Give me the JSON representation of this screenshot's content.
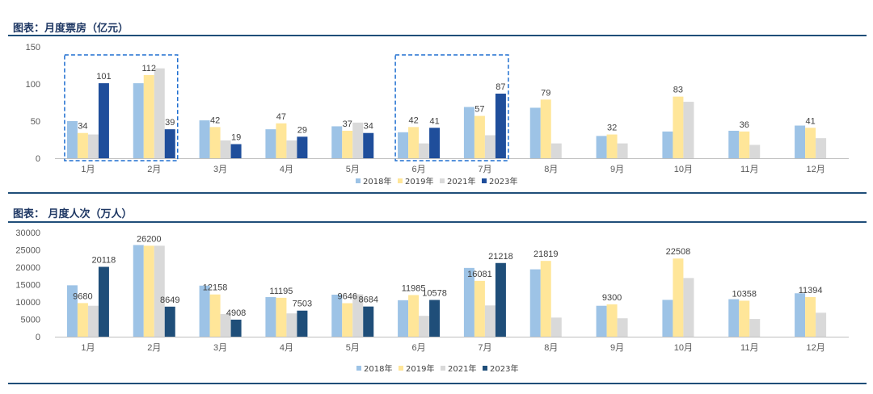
{
  "chart_data": [
    {
      "type": "bar",
      "title": "图表：月度票房（亿元）",
      "categories": [
        "1月",
        "2月",
        "3月",
        "4月",
        "5月",
        "6月",
        "7月",
        "8月",
        "9月",
        "10月",
        "11月",
        "12月"
      ],
      "series": [
        {
          "name": "2018年",
          "color": "#9dc3e6",
          "values": [
            50,
            101,
            51,
            39,
            43,
            35,
            69,
            68,
            30,
            36,
            37,
            44
          ]
        },
        {
          "name": "2019年",
          "color": "#ffe699",
          "values": [
            34,
            112,
            42,
            47,
            37,
            42,
            57,
            79,
            32,
            83,
            36,
            41
          ]
        },
        {
          "name": "2021年",
          "color": "#d9d9d9",
          "values": [
            32,
            121,
            24,
            24,
            48,
            20,
            31,
            20,
            20,
            76,
            18,
            27
          ]
        },
        {
          "name": "2023年",
          "color": "#1f4e9b",
          "values": [
            101,
            39,
            19,
            29,
            34,
            41,
            87,
            null,
            null,
            null,
            null,
            null
          ]
        }
      ],
      "data_labels": [
        {
          "category": "1月",
          "series": "2019年",
          "text": "34"
        },
        {
          "category": "1月",
          "series": "2023年",
          "text": "101"
        },
        {
          "category": "2月",
          "series": "2019年",
          "text": "112"
        },
        {
          "category": "2月",
          "series": "2023年",
          "text": "39"
        },
        {
          "category": "3月",
          "series": "2019年",
          "text": "42"
        },
        {
          "category": "3月",
          "series": "2023年",
          "text": "19"
        },
        {
          "category": "4月",
          "series": "2019年",
          "text": "47"
        },
        {
          "category": "4月",
          "series": "2023年",
          "text": "29"
        },
        {
          "category": "5月",
          "series": "2019年",
          "text": "37"
        },
        {
          "category": "5月",
          "series": "2023年",
          "text": "34"
        },
        {
          "category": "6月",
          "series": "2019年",
          "text": "42"
        },
        {
          "category": "6月",
          "series": "2023年",
          "text": "41"
        },
        {
          "category": "7月",
          "series": "2019年",
          "text": "57"
        },
        {
          "category": "7月",
          "series": "2023年",
          "text": "87"
        },
        {
          "category": "8月",
          "series": "2019年",
          "text": "79"
        },
        {
          "category": "9月",
          "series": "2019年",
          "text": "32"
        },
        {
          "category": "10月",
          "series": "2019年",
          "text": "83"
        },
        {
          "category": "11月",
          "series": "2019年",
          "text": "36"
        },
        {
          "category": "12月",
          "series": "2019年",
          "text": "41"
        }
      ],
      "highlight_groups": [
        [
          "1月",
          "2月"
        ],
        [
          "6月",
          "7月"
        ]
      ],
      "ylim": [
        0,
        150
      ],
      "yticks": [
        0,
        50,
        100,
        150
      ],
      "legend": "bottom-center",
      "grid": false
    },
    {
      "type": "bar",
      "title": "图表： 月度人次（万人）",
      "categories": [
        "1月",
        "2月",
        "3月",
        "4月",
        "5月",
        "6月",
        "7月",
        "8月",
        "9月",
        "10月",
        "11月",
        "12月"
      ],
      "series": [
        {
          "name": "2018年",
          "color": "#9dc3e6",
          "values": [
            14800,
            26400,
            14700,
            11400,
            12100,
            10500,
            19800,
            19400,
            8900,
            10600,
            10800,
            12500
          ]
        },
        {
          "name": "2019年",
          "color": "#ffe699",
          "values": [
            9680,
            26200,
            12158,
            11195,
            9646,
            11985,
            16081,
            21819,
            9300,
            22508,
            10358,
            11394
          ]
        },
        {
          "name": "2021年",
          "color": "#d9d9d9",
          "values": [
            8900,
            26200,
            6500,
            6700,
            12200,
            6000,
            9000,
            5500,
            5300,
            16900,
            5100,
            6900
          ]
        },
        {
          "name": "2023年",
          "color": "#1f4e79",
          "values": [
            20118,
            8649,
            4908,
            7503,
            8684,
            10578,
            21218,
            null,
            null,
            null,
            null,
            null
          ]
        }
      ],
      "data_labels": [
        {
          "category": "1月",
          "series": "2019年",
          "text": "9680"
        },
        {
          "category": "1月",
          "series": "2023年",
          "text": "20118"
        },
        {
          "category": "2月",
          "series": "2019年",
          "text": "26200"
        },
        {
          "category": "2月",
          "series": "2023年",
          "text": "8649"
        },
        {
          "category": "3月",
          "series": "2019年",
          "text": "12158"
        },
        {
          "category": "3月",
          "series": "2023年",
          "text": "4908"
        },
        {
          "category": "4月",
          "series": "2019年",
          "text": "11195"
        },
        {
          "category": "4月",
          "series": "2023年",
          "text": "7503"
        },
        {
          "category": "5月",
          "series": "2019年",
          "text": "9646"
        },
        {
          "category": "5月",
          "series": "2023年",
          "text": "8684"
        },
        {
          "category": "6月",
          "series": "2019年",
          "text": "11985"
        },
        {
          "category": "6月",
          "series": "2023年",
          "text": "10578"
        },
        {
          "category": "7月",
          "series": "2019年",
          "text": "16081"
        },
        {
          "category": "7月",
          "series": "2023年",
          "text": "21218"
        },
        {
          "category": "8月",
          "series": "2019年",
          "text": "21819"
        },
        {
          "category": "9月",
          "series": "2019年",
          "text": "9300"
        },
        {
          "category": "10月",
          "series": "2019年",
          "text": "22508"
        },
        {
          "category": "11月",
          "series": "2019年",
          "text": "10358"
        },
        {
          "category": "12月",
          "series": "2019年",
          "text": "11394"
        }
      ],
      "ylim": [
        0,
        30000
      ],
      "yticks": [
        0,
        5000,
        10000,
        15000,
        20000,
        25000,
        30000
      ],
      "legend": "bottom-center",
      "grid": false
    }
  ]
}
